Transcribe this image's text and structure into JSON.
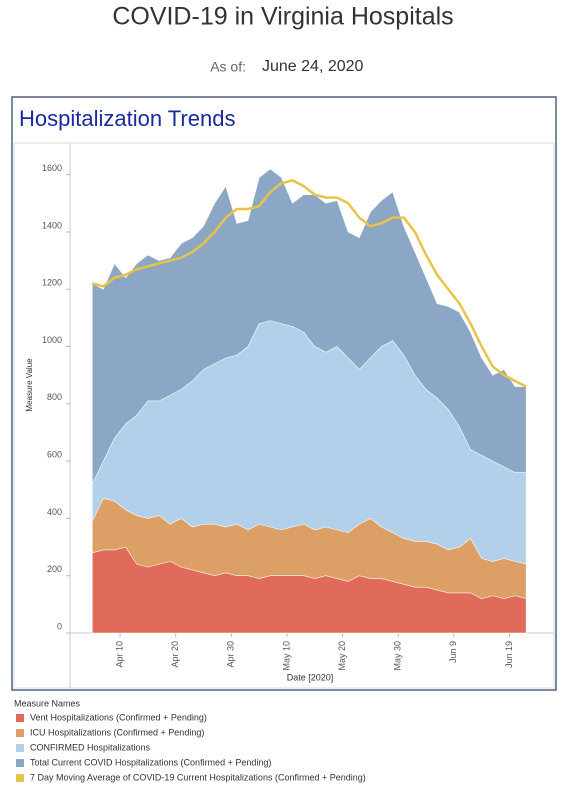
{
  "header": {
    "title": "COVID-19 in Virginia Hospitals",
    "as_of_label": "As of:",
    "as_of_date": "June 24, 2020"
  },
  "chart_data": {
    "type": "area",
    "title": "Hospitalization Trends",
    "x_label": "Date [2020]",
    "y_label": "Measure Value",
    "legend_title": "Measure Names",
    "x": [
      "2020-04-05",
      "2020-04-07",
      "2020-04-09",
      "2020-04-11",
      "2020-04-13",
      "2020-04-15",
      "2020-04-17",
      "2020-04-19",
      "2020-04-21",
      "2020-04-23",
      "2020-04-25",
      "2020-04-27",
      "2020-04-29",
      "2020-05-01",
      "2020-05-03",
      "2020-05-05",
      "2020-05-07",
      "2020-05-09",
      "2020-05-11",
      "2020-05-13",
      "2020-05-15",
      "2020-05-17",
      "2020-05-19",
      "2020-05-21",
      "2020-05-23",
      "2020-05-25",
      "2020-05-27",
      "2020-05-29",
      "2020-05-31",
      "2020-06-02",
      "2020-06-04",
      "2020-06-06",
      "2020-06-08",
      "2020-06-10",
      "2020-06-12",
      "2020-06-14",
      "2020-06-16",
      "2020-06-18",
      "2020-06-20",
      "2020-06-22"
    ],
    "series": [
      {
        "name": "Vent Hospitalizations (Confirmed + Pending)",
        "type": "area",
        "color": "#e06b5b",
        "values": [
          280,
          290,
          290,
          300,
          240,
          230,
          240,
          250,
          230,
          220,
          210,
          200,
          210,
          200,
          200,
          190,
          200,
          200,
          200,
          200,
          190,
          200,
          190,
          180,
          200,
          190,
          190,
          180,
          170,
          160,
          160,
          150,
          140,
          140,
          140,
          120,
          130,
          120,
          130,
          120
        ]
      },
      {
        "name": "ICU Hospitalizations (Confirmed + Pending)",
        "type": "area",
        "color": "#dca066",
        "values": [
          390,
          470,
          460,
          430,
          410,
          400,
          410,
          380,
          400,
          370,
          380,
          380,
          370,
          380,
          360,
          380,
          370,
          360,
          370,
          380,
          360,
          370,
          360,
          350,
          380,
          400,
          370,
          350,
          330,
          320,
          320,
          310,
          290,
          300,
          330,
          260,
          250,
          260,
          250,
          240
        ]
      },
      {
        "name": "CONFIRMED Hospitalizations",
        "type": "area",
        "color": "#b3d0ea",
        "values": [
          520,
          600,
          680,
          730,
          760,
          810,
          810,
          830,
          850,
          880,
          920,
          940,
          960,
          970,
          1000,
          1080,
          1090,
          1080,
          1070,
          1050,
          1000,
          980,
          1000,
          960,
          920,
          960,
          1000,
          1020,
          970,
          900,
          850,
          820,
          780,
          720,
          640,
          620,
          600,
          580,
          560,
          560
        ]
      },
      {
        "name": "Total Current COVID Hospitalizations (Confirmed + Pending)",
        "type": "area",
        "color": "#8ca7c6",
        "values": [
          1220,
          1200,
          1290,
          1240,
          1290,
          1320,
          1300,
          1310,
          1360,
          1380,
          1420,
          1500,
          1560,
          1430,
          1440,
          1590,
          1620,
          1590,
          1500,
          1530,
          1530,
          1500,
          1510,
          1400,
          1380,
          1470,
          1510,
          1540,
          1420,
          1330,
          1240,
          1150,
          1140,
          1120,
          1050,
          960,
          900,
          920,
          860,
          860
        ]
      },
      {
        "name": "7 Day Moving Average of COVID-19 Current Hospitalizations (Confirmed + Pending)",
        "type": "line",
        "color": "#e6c447",
        "values": [
          1220,
          1210,
          1240,
          1250,
          1270,
          1280,
          1290,
          1300,
          1310,
          1330,
          1360,
          1400,
          1450,
          1480,
          1480,
          1490,
          1540,
          1570,
          1580,
          1560,
          1530,
          1520,
          1520,
          1500,
          1450,
          1420,
          1430,
          1450,
          1450,
          1400,
          1320,
          1250,
          1200,
          1150,
          1080,
          1000,
          930,
          900,
          880,
          860
        ]
      }
    ],
    "xlim": [
      "2020-04-01",
      "2020-06-27"
    ],
    "xticks": [
      {
        "value": "2020-04-10",
        "label": "Apr 10"
      },
      {
        "value": "2020-04-20",
        "label": "Apr 20"
      },
      {
        "value": "2020-04-30",
        "label": "Apr 30"
      },
      {
        "value": "2020-05-10",
        "label": "May 10"
      },
      {
        "value": "2020-05-20",
        "label": "May 20"
      },
      {
        "value": "2020-05-30",
        "label": "May 30"
      },
      {
        "value": "2020-06-09",
        "label": "Jun 9"
      },
      {
        "value": "2020-06-19",
        "label": "Jun 19"
      }
    ],
    "ylim": [
      0,
      1700
    ],
    "yticks": [
      0,
      200,
      400,
      600,
      800,
      1000,
      1200,
      1400,
      1600
    ]
  }
}
